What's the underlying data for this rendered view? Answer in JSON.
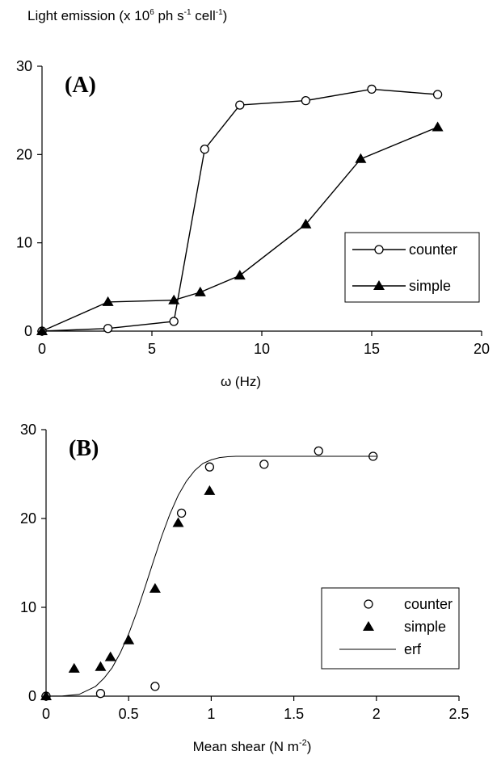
{
  "figure": {
    "ylabel_base": "Light emission (x 10",
    "ylabel_exp1": "6",
    "ylabel_mid": " ph s",
    "ylabel_exp2": "-1",
    "ylabel_mid2": " cell",
    "ylabel_exp3": "-1",
    "ylabel_end": ")"
  },
  "chart_data": [
    {
      "type": "line",
      "panel_label": "(A)",
      "xlabel": "ω (Hz)",
      "xlim": [
        0,
        20
      ],
      "ylim": [
        0,
        30
      ],
      "xticks": [
        0,
        5,
        10,
        15,
        20
      ],
      "yticks": [
        0,
        10,
        20,
        30
      ],
      "grid": false,
      "legend_position": "center-right",
      "series": [
        {
          "name": "counter",
          "marker": "open-circle",
          "x": [
            0,
            3,
            6,
            7.4,
            9,
            12,
            15,
            18
          ],
          "y": [
            0,
            0.3,
            1.1,
            20.6,
            25.6,
            26.1,
            27.4,
            26.8
          ]
        },
        {
          "name": "simple",
          "marker": "filled-triangle",
          "x": [
            0,
            3,
            6,
            7.2,
            9,
            12,
            14.5,
            18
          ],
          "y": [
            0,
            3.3,
            3.5,
            4.4,
            6.3,
            12.1,
            19.5,
            23.1
          ]
        }
      ]
    },
    {
      "type": "scatter",
      "panel_label": "(B)",
      "xlabel_base": "Mean shear  (N m",
      "xlabel_exp": "-2",
      "xlabel_end": ")",
      "xlim": [
        0,
        2.5
      ],
      "ylim": [
        0,
        30
      ],
      "xticks": [
        "0",
        "0.5",
        "1",
        "1.5",
        "2",
        "2.5"
      ],
      "yticks": [
        0,
        10,
        20,
        30
      ],
      "grid": false,
      "legend_position": "bottom-right",
      "series": [
        {
          "name": "counter",
          "marker": "open-circle",
          "x": [
            0,
            0.33,
            0.66,
            0.82,
            0.99,
            1.32,
            1.65,
            1.98
          ],
          "y": [
            0,
            0.3,
            1.1,
            20.6,
            25.8,
            26.1,
            27.6,
            27.0
          ]
        },
        {
          "name": "simple",
          "marker": "filled-triangle",
          "x": [
            0,
            0.17,
            0.33,
            0.39,
            0.5,
            0.66,
            0.8,
            0.99
          ],
          "y": [
            0,
            3.1,
            3.3,
            4.4,
            6.3,
            12.1,
            19.5,
            23.1
          ]
        },
        {
          "name": "erf",
          "marker": "line",
          "x": [
            0,
            0.1,
            0.2,
            0.3,
            0.35,
            0.4,
            0.45,
            0.5,
            0.55,
            0.6,
            0.65,
            0.7,
            0.75,
            0.8,
            0.85,
            0.9,
            0.95,
            1.0,
            1.05,
            1.1,
            1.15,
            1.2,
            1.3,
            1.4,
            1.5,
            1.6,
            1.7,
            1.8,
            1.9,
            2.0
          ],
          "y": [
            0,
            0.02,
            0.2,
            1.1,
            2.0,
            3.2,
            4.9,
            7.0,
            9.5,
            12.3,
            15.2,
            18.0,
            20.5,
            22.6,
            24.2,
            25.4,
            26.2,
            26.6,
            26.85,
            26.95,
            27.0,
            27.0,
            27.0,
            27.0,
            27.0,
            27.0,
            27.0,
            27.0,
            27.0,
            27.0
          ]
        }
      ]
    }
  ]
}
